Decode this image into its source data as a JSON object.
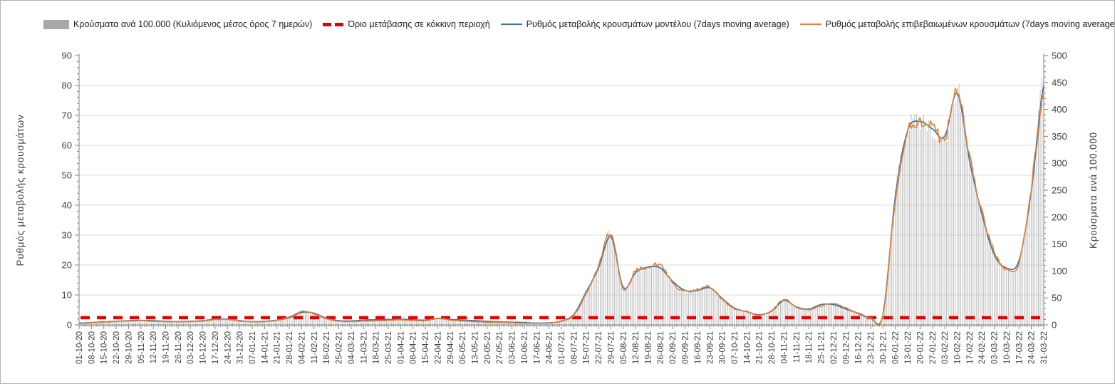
{
  "legend": [
    {
      "label": "Κρούσματα ανά 100.000 (Κυλιόμενος μέσος όρος 7 ημερών)",
      "type": "bar",
      "color": "#a8a8a8"
    },
    {
      "label": "Όριο μετάβασης σε κόκκινη περιοχή",
      "type": "dashed",
      "color": "#e60000"
    },
    {
      "label": "Ρυθμός μεταβολής κρουσμάτων μοντέλου (7days moving average)",
      "type": "line",
      "color": "#41709f"
    },
    {
      "label": "Ρυθμός μεταβολής επιβεβαιωμένων κρουσμάτων (7days moving average)",
      "type": "line",
      "color": "#dd8238"
    }
  ],
  "chart_data": {
    "type": "line+bar",
    "left_axis": {
      "label": "Ρυθμός μεταβολής κρουσμάτων",
      "min": 0,
      "max": 90,
      "step": 10,
      "minor_step": 2
    },
    "right_axis": {
      "label": "Κρούσματα ανά 100.000",
      "min": 0,
      "max": 500,
      "step": 50,
      "minor_step": 10
    },
    "threshold": {
      "label": "Όριο μετάβασης σε κόκκινη περιοχή",
      "value_left_axis": 2.4,
      "color": "#e60000"
    },
    "grid": "horizontal-major-only",
    "x_tick_labels": [
      "01-10-20",
      "08-10-20",
      "15-10-20",
      "22-10-20",
      "29-10-20",
      "05-11-20",
      "12-11-20",
      "19-11-20",
      "26-11-20",
      "03-12-20",
      "10-12-20",
      "17-12-20",
      "24-12-20",
      "31-12-20",
      "07-01-21",
      "14-01-21",
      "21-01-21",
      "28-01-21",
      "04-02-21",
      "11-02-21",
      "18-02-21",
      "25-02-21",
      "04-03-21",
      "11-03-21",
      "18-03-21",
      "25-03-21",
      "01-04-21",
      "08-04-21",
      "15-04-21",
      "22-04-21",
      "29-04-21",
      "06-05-21",
      "13-05-21",
      "20-05-21",
      "27-05-21",
      "03-06-21",
      "10-06-21",
      "17-06-21",
      "24-06-21",
      "01-07-21",
      "08-07-21",
      "15-07-21",
      "22-07-21",
      "29-07-21",
      "05-08-21",
      "12-08-21",
      "19-08-21",
      "26-08-21",
      "02-09-21",
      "09-09-21",
      "16-09-21",
      "23-09-21",
      "30-09-21",
      "07-10-21",
      "14-10-21",
      "21-10-21",
      "28-10-21",
      "04-11-21",
      "11-11-21",
      "18-11-21",
      "25-11-21",
      "02-12-21",
      "09-12-21",
      "16-12-21",
      "23-12-21",
      "30-12-21",
      "06-01-22",
      "13-01-22",
      "20-01-22",
      "27-01-22",
      "03-02-22",
      "10-02-22",
      "17-02-22",
      "24-02-22",
      "03-03-22",
      "10-03-22",
      "17-03-22",
      "24-03-22",
      "31-03-22"
    ],
    "series": [
      {
        "name": "Ρυθμός μεταβολής κρουσμάτων μοντέλου (7days moving average)",
        "axis": "left",
        "style": "line",
        "color": "#41709f",
        "values": [
          0.6,
          0.8,
          1.0,
          1.2,
          1.4,
          1.5,
          1.4,
          1.2,
          1.1,
          1.2,
          1.4,
          1.9,
          1.9,
          1.4,
          1.1,
          1.2,
          1.6,
          2.4,
          4.2,
          3.9,
          2.2,
          1.4,
          1.3,
          1.6,
          1.7,
          1.8,
          1.9,
          1.7,
          1.6,
          2.1,
          1.8,
          1.6,
          1.4,
          1.2,
          1.0,
          0.9,
          0.8,
          0.6,
          0.7,
          1.3,
          3.5,
          11.0,
          19.0,
          29.5,
          12.5,
          17.5,
          19.3,
          19.0,
          14.5,
          11.5,
          11.5,
          12.4,
          8.8,
          5.6,
          4.4,
          3.4,
          4.6,
          8.2,
          6.0,
          5.3,
          6.8,
          6.8,
          5.3,
          3.9,
          2.4,
          3.5,
          43.0,
          65.0,
          68.0,
          65.5,
          63.0,
          77.5,
          55.0,
          37.0,
          23.5,
          19.0,
          21.5,
          45.0,
          80.0
        ]
      },
      {
        "name": "Ρυθμός μεταβολής επιβεβαιωμένων κρουσμάτων (7days moving average)",
        "axis": "left",
        "style": "line",
        "color": "#dd8238",
        "values": [
          0.5,
          0.7,
          0.9,
          1.1,
          1.3,
          1.4,
          1.2,
          1.1,
          1.0,
          1.1,
          1.3,
          1.8,
          1.8,
          1.3,
          1.0,
          1.1,
          1.5,
          2.6,
          4.5,
          3.7,
          2.0,
          1.2,
          1.1,
          1.3,
          1.4,
          1.5,
          1.7,
          1.5,
          1.4,
          2.3,
          1.6,
          1.3,
          1.1,
          0.9,
          0.8,
          0.7,
          0.6,
          0.5,
          0.6,
          1.2,
          3.2,
          10.5,
          20.0,
          30.5,
          12.0,
          18.0,
          19.0,
          20.3,
          13.8,
          11.2,
          11.8,
          12.8,
          8.5,
          5.4,
          4.5,
          3.2,
          4.8,
          8.4,
          5.8,
          5.1,
          6.3,
          7.2,
          5.6,
          3.7,
          2.2,
          3.2,
          42.0,
          64.5,
          67.5,
          66.0,
          62.0,
          78.0,
          56.0,
          38.0,
          24.5,
          18.5,
          21.0,
          46.0,
          78.5
        ]
      },
      {
        "name": "Κρούσματα ανά 100.000 (Κυλιόμενος μέσος όρος 7 ημερών)",
        "axis": "right",
        "style": "bar",
        "color": "#bcbcbc",
        "values": [
          3,
          4,
          5,
          6,
          7,
          8,
          7,
          6,
          6,
          6,
          7,
          10,
          10,
          7,
          6,
          6,
          8,
          14,
          25,
          21,
          11,
          7,
          6,
          7,
          8,
          8,
          9,
          8,
          8,
          13,
          9,
          7,
          6,
          5,
          4,
          4,
          3,
          3,
          3,
          7,
          18,
          58,
          111,
          169,
          67,
          100,
          106,
          113,
          77,
          62,
          66,
          71,
          47,
          30,
          25,
          18,
          27,
          47,
          32,
          28,
          35,
          40,
          31,
          21,
          12,
          19,
          240,
          360,
          376,
          364,
          345,
          433,
          311,
          211,
          136,
          103,
          117,
          255,
          470
        ]
      }
    ]
  }
}
